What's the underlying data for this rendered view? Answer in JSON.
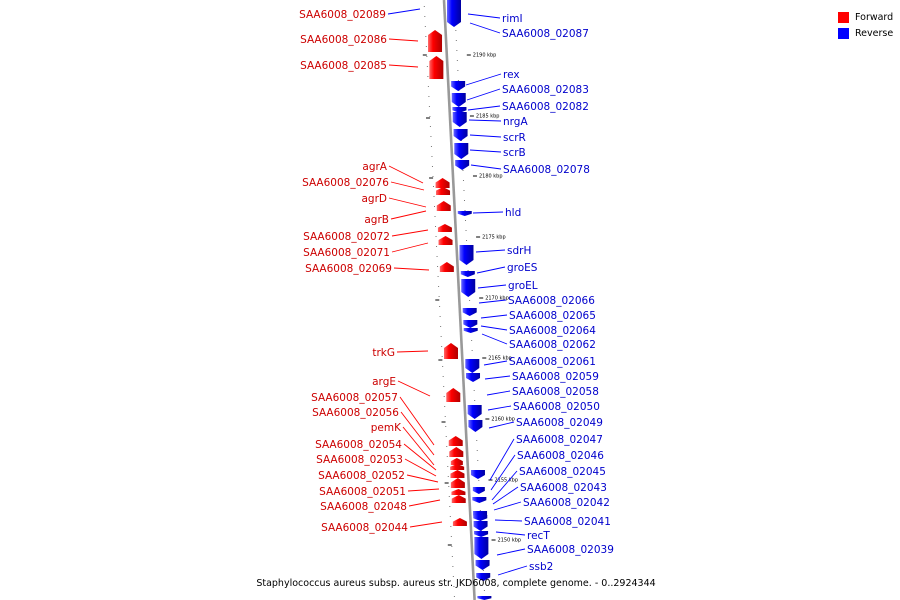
{
  "caption": "Staphylococcus aureus subsp. aureus str. JKD6008, complete genome. - 0..2924344",
  "legend": [
    {
      "label": "Forward",
      "color": "#ff0000"
    },
    {
      "label": "Reverse",
      "color": "#0000ff"
    }
  ],
  "colors": {
    "forward": "#ff0000",
    "forward_text": "#cc0000",
    "reverse": "#0000ff",
    "reverse_text": "#0000cc",
    "backbone": "#999999"
  },
  "ruler_ticks": [
    "2190 kbp",
    "2185 kbp",
    "2180 kbp",
    "2175 kbp",
    "2170 kbp",
    "2165 kbp",
    "2160 kbp",
    "2155 kbp",
    "2150 kbp"
  ],
  "forward_genes": [
    "SAA6008_02089",
    "SAA6008_02086",
    "SAA6008_02085",
    "agrA",
    "SAA6008_02076",
    "agrD",
    "agrB",
    "SAA6008_02072",
    "SAA6008_02071",
    "SAA6008_02069",
    "trkG",
    "argE",
    "SAA6008_02057",
    "SAA6008_02056",
    "pemK",
    "SAA6008_02054",
    "SAA6008_02053",
    "SAA6008_02052",
    "SAA6008_02051",
    "SAA6008_02048",
    "SAA6008_02044"
  ],
  "reverse_genes": [
    "rimI",
    "SAA6008_02087",
    "rex",
    "SAA6008_02083",
    "SAA6008_02082",
    "nrgA",
    "scrR",
    "scrB",
    "SAA6008_02078",
    "hld",
    "sdrH",
    "groES",
    "groEL",
    "SAA6008_02066",
    "SAA6008_02065",
    "SAA6008_02064",
    "SAA6008_02062",
    "SAA6008_02061",
    "SAA6008_02059",
    "SAA6008_02058",
    "SAA6008_02050",
    "SAA6008_02049",
    "SAA6008_02047",
    "SAA6008_02046",
    "SAA6008_02045",
    "SAA6008_02043",
    "SAA6008_02042",
    "SAA6008_02041",
    "recT",
    "SAA6008_02039",
    "ssb2"
  ]
}
